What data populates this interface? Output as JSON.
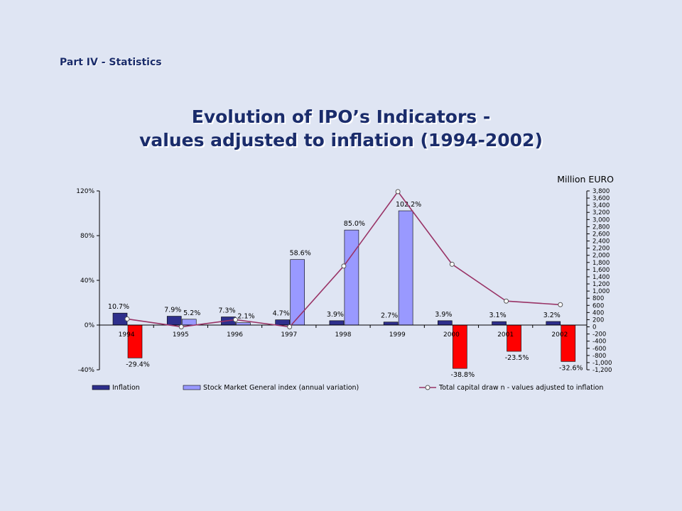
{
  "header": {
    "section_label": "Part IV - Statistics"
  },
  "slide": {
    "title_line1": "Evolution of IPO’s Indicators -",
    "title_line2": "values adjusted to inflation (1994-2002)"
  },
  "chart_data": {
    "type": "bar",
    "categories": [
      "1994",
      "1995",
      "1996",
      "1997",
      "1998",
      "1999",
      "2000",
      "2001",
      "2002"
    ],
    "series": [
      {
        "name": "Inflation",
        "kind": "bar",
        "axis": "left",
        "color": "#2e2f8c",
        "values": [
          10.7,
          7.9,
          7.3,
          4.7,
          3.9,
          2.7,
          3.9,
          3.1,
          3.2
        ],
        "labels": [
          "10.7%",
          "7.9%",
          "7.3%",
          "4.7%",
          "3.9%",
          "2.7%",
          "3.9%",
          "3.1%",
          "3.2%"
        ]
      },
      {
        "name": "Stock Market General index (annual variation)",
        "kind": "bar",
        "axis": "left",
        "color": "#9999ff",
        "negative_color": "#ff0000",
        "values": [
          -29.4,
          5.2,
          2.1,
          58.6,
          85.0,
          102.2,
          -38.8,
          -23.5,
          -32.6
        ],
        "labels": [
          "-29.4%",
          "5.2%",
          "2.1%",
          "58.6%",
          "85.0%",
          "102.2%",
          "-38.8%",
          "-23.5%",
          "-32.6%"
        ]
      },
      {
        "name": "Total capital draw n - values adjusted to inflation",
        "kind": "line",
        "axis": "right",
        "color": "#993366",
        "values": [
          220,
          0,
          200,
          0,
          1700,
          3780,
          1750,
          720,
          620
        ]
      }
    ],
    "y_left": {
      "min": -40,
      "max": 120,
      "ticks": [
        -40,
        0,
        40,
        80,
        120
      ],
      "tick_labels": [
        "-40%",
        "0%",
        "40%",
        "80%",
        "120%"
      ]
    },
    "y_right": {
      "min": -1200,
      "max": 3800,
      "label": "Million EURO",
      "ticks": [
        3800,
        3600,
        3400,
        3200,
        3000,
        2800,
        2600,
        2400,
        2200,
        2000,
        1800,
        1600,
        1400,
        1200,
        1000,
        800,
        600,
        400,
        200,
        0,
        -200,
        -400,
        -600,
        -800,
        -1000,
        -1200
      ],
      "tick_labels": [
        "3,800",
        "3,600",
        "3,400",
        "3,200",
        "3,000",
        "2,800",
        "2,600",
        "2,400",
        "2,200",
        "2,000",
        "1,800",
        "1,600",
        "1,400",
        "1,200",
        "1,000",
        "800",
        "600",
        "400",
        "200",
        "0",
        "-200",
        "-400",
        "-600",
        "-800",
        "-1,000",
        "-1,200"
      ]
    },
    "legend_position": "bottom",
    "grid": false
  }
}
